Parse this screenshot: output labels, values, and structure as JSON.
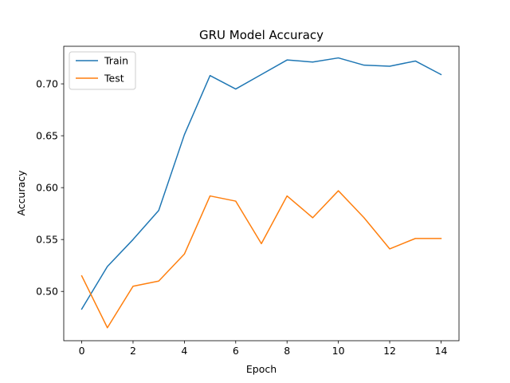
{
  "chart_data": {
    "type": "line",
    "title": "GRU Model Accuracy",
    "xlabel": "Epoch",
    "ylabel": "Accuracy",
    "x": [
      0,
      1,
      2,
      3,
      4,
      5,
      6,
      7,
      8,
      9,
      10,
      11,
      12,
      13,
      14
    ],
    "xlim": [
      -0.7,
      14.7
    ],
    "ylim": [
      0.4525,
      0.7362
    ],
    "xticks": [
      0,
      2,
      4,
      6,
      8,
      10,
      12,
      14
    ],
    "xtick_labels": [
      "0",
      "2",
      "4",
      "6",
      "8",
      "10",
      "12",
      "14"
    ],
    "yticks": [
      0.5,
      0.55,
      0.6,
      0.65,
      0.7
    ],
    "ytick_labels": [
      "0.50",
      "0.55",
      "0.60",
      "0.65",
      "0.70"
    ],
    "grid": false,
    "legend_position": "upper-left",
    "series": [
      {
        "name": "Train",
        "color": "#1f77b4",
        "values": [
          0.483,
          0.524,
          0.55,
          0.578,
          0.651,
          0.708,
          0.695,
          0.709,
          0.723,
          0.721,
          0.725,
          0.718,
          0.717,
          0.722,
          0.709
        ]
      },
      {
        "name": "Test",
        "color": "#ff7f0e",
        "values": [
          0.515,
          0.465,
          0.505,
          0.51,
          0.536,
          0.592,
          0.587,
          0.546,
          0.592,
          0.571,
          0.597,
          0.571,
          0.541,
          0.551,
          0.551
        ]
      }
    ]
  }
}
